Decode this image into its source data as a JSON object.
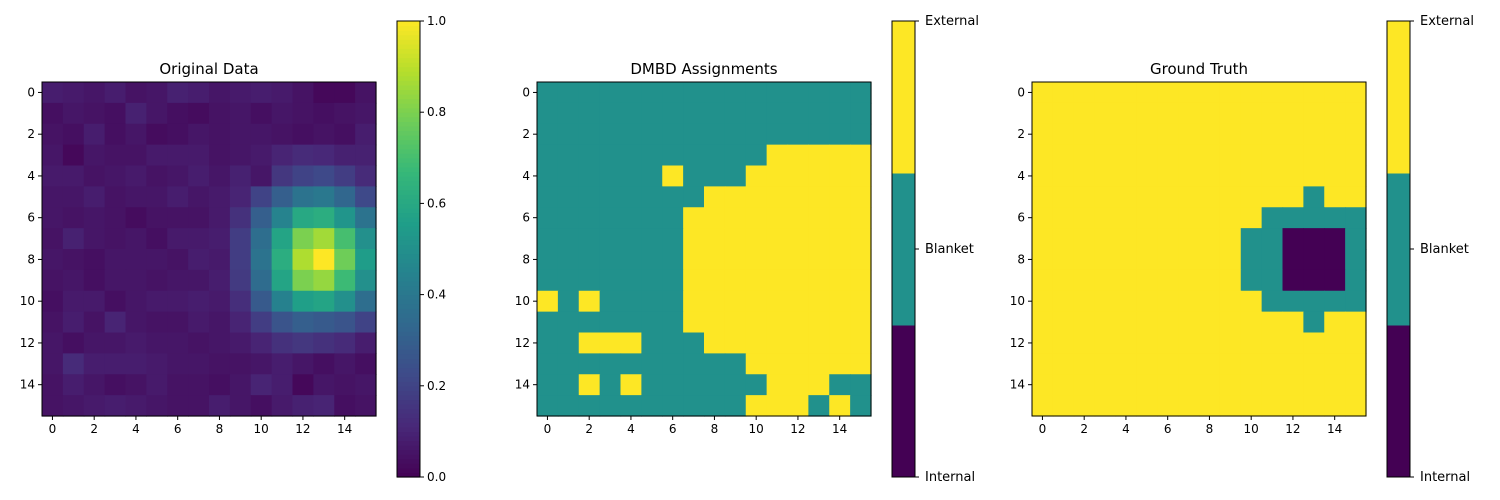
{
  "chart_data": [
    {
      "type": "heatmap",
      "title": "Original Data",
      "x_ticks": [
        0,
        2,
        4,
        6,
        8,
        10,
        12,
        14
      ],
      "y_ticks": [
        0,
        2,
        4,
        6,
        8,
        10,
        12,
        14
      ],
      "colormap": "viridis",
      "colorbar": {
        "ticks": [
          "0.0",
          "0.2",
          "0.4",
          "0.6",
          "0.8",
          "1.0"
        ],
        "range": [
          0,
          1
        ]
      },
      "values": [
        [
          0.08,
          0.07,
          0.06,
          0.08,
          0.05,
          0.06,
          0.09,
          0.08,
          0.06,
          0.07,
          0.08,
          0.07,
          0.05,
          0.02,
          0.02,
          0.05
        ],
        [
          0.04,
          0.06,
          0.05,
          0.04,
          0.09,
          0.06,
          0.04,
          0.03,
          0.05,
          0.06,
          0.04,
          0.06,
          0.05,
          0.04,
          0.05,
          0.06
        ],
        [
          0.05,
          0.04,
          0.08,
          0.04,
          0.06,
          0.03,
          0.04,
          0.06,
          0.05,
          0.06,
          0.06,
          0.05,
          0.04,
          0.05,
          0.04,
          0.08
        ],
        [
          0.06,
          0.02,
          0.06,
          0.05,
          0.05,
          0.07,
          0.07,
          0.07,
          0.05,
          0.06,
          0.07,
          0.1,
          0.12,
          0.11,
          0.09,
          0.09
        ],
        [
          0.07,
          0.07,
          0.05,
          0.06,
          0.07,
          0.05,
          0.06,
          0.08,
          0.06,
          0.09,
          0.06,
          0.16,
          0.2,
          0.22,
          0.18,
          0.12
        ],
        [
          0.06,
          0.06,
          0.08,
          0.05,
          0.06,
          0.06,
          0.08,
          0.06,
          0.07,
          0.1,
          0.2,
          0.3,
          0.38,
          0.4,
          0.33,
          0.22
        ],
        [
          0.06,
          0.05,
          0.06,
          0.05,
          0.03,
          0.05,
          0.05,
          0.05,
          0.07,
          0.14,
          0.3,
          0.45,
          0.6,
          0.62,
          0.52,
          0.38
        ],
        [
          0.05,
          0.09,
          0.06,
          0.05,
          0.06,
          0.04,
          0.07,
          0.07,
          0.08,
          0.18,
          0.36,
          0.58,
          0.8,
          0.86,
          0.7,
          0.5
        ],
        [
          0.06,
          0.05,
          0.04,
          0.06,
          0.06,
          0.06,
          0.05,
          0.08,
          0.07,
          0.18,
          0.38,
          0.62,
          0.88,
          1.0,
          0.78,
          0.55
        ],
        [
          0.05,
          0.06,
          0.04,
          0.06,
          0.06,
          0.05,
          0.06,
          0.06,
          0.08,
          0.17,
          0.35,
          0.58,
          0.8,
          0.84,
          0.68,
          0.5
        ],
        [
          0.04,
          0.07,
          0.07,
          0.04,
          0.06,
          0.07,
          0.07,
          0.08,
          0.07,
          0.13,
          0.28,
          0.44,
          0.56,
          0.58,
          0.5,
          0.36
        ],
        [
          0.05,
          0.08,
          0.05,
          0.1,
          0.06,
          0.05,
          0.05,
          0.07,
          0.06,
          0.1,
          0.18,
          0.26,
          0.3,
          0.28,
          0.26,
          0.2
        ],
        [
          0.06,
          0.04,
          0.06,
          0.06,
          0.07,
          0.06,
          0.06,
          0.05,
          0.06,
          0.07,
          0.1,
          0.14,
          0.16,
          0.14,
          0.12,
          0.08
        ],
        [
          0.06,
          0.12,
          0.08,
          0.08,
          0.08,
          0.07,
          0.06,
          0.06,
          0.05,
          0.05,
          0.06,
          0.08,
          0.06,
          0.04,
          0.06,
          0.04
        ],
        [
          0.05,
          0.08,
          0.06,
          0.04,
          0.05,
          0.07,
          0.05,
          0.05,
          0.04,
          0.06,
          0.1,
          0.08,
          0.02,
          0.06,
          0.05,
          0.06
        ],
        [
          0.05,
          0.06,
          0.07,
          0.08,
          0.07,
          0.06,
          0.05,
          0.05,
          0.08,
          0.06,
          0.04,
          0.07,
          0.09,
          0.1,
          0.04,
          0.05
        ]
      ]
    },
    {
      "type": "heatmap",
      "title": "DMBD Assignments",
      "x_ticks": [
        0,
        2,
        4,
        6,
        8,
        10,
        12,
        14
      ],
      "y_ticks": [
        0,
        2,
        4,
        6,
        8,
        10,
        12,
        14
      ],
      "colormap": "viridis-3",
      "class_colors": [
        "#440154",
        "#21918c",
        "#fde725"
      ],
      "colorbar": {
        "labels": [
          "Internal",
          "Blanket",
          "External"
        ]
      },
      "values": [
        [
          1,
          1,
          1,
          1,
          1,
          1,
          1,
          1,
          1,
          1,
          1,
          1,
          1,
          1,
          1,
          1
        ],
        [
          1,
          1,
          1,
          1,
          1,
          1,
          1,
          1,
          1,
          1,
          1,
          1,
          1,
          1,
          1,
          1
        ],
        [
          1,
          1,
          1,
          1,
          1,
          1,
          1,
          1,
          1,
          1,
          1,
          1,
          1,
          1,
          1,
          1
        ],
        [
          1,
          1,
          1,
          1,
          1,
          1,
          1,
          1,
          1,
          1,
          1,
          2,
          2,
          2,
          2,
          2
        ],
        [
          1,
          1,
          1,
          1,
          1,
          1,
          2,
          1,
          1,
          1,
          2,
          2,
          2,
          2,
          2,
          2
        ],
        [
          1,
          1,
          1,
          1,
          1,
          1,
          1,
          1,
          2,
          2,
          2,
          2,
          2,
          2,
          2,
          2
        ],
        [
          1,
          1,
          1,
          1,
          1,
          1,
          1,
          2,
          2,
          2,
          2,
          2,
          2,
          2,
          2,
          2
        ],
        [
          1,
          1,
          1,
          1,
          1,
          1,
          1,
          2,
          2,
          2,
          2,
          2,
          2,
          2,
          2,
          2
        ],
        [
          1,
          1,
          1,
          1,
          1,
          1,
          1,
          2,
          2,
          2,
          2,
          2,
          2,
          2,
          2,
          2
        ],
        [
          1,
          1,
          1,
          1,
          1,
          1,
          1,
          2,
          2,
          2,
          2,
          2,
          2,
          2,
          2,
          2
        ],
        [
          2,
          1,
          2,
          1,
          1,
          1,
          1,
          2,
          2,
          2,
          2,
          2,
          2,
          2,
          2,
          2
        ],
        [
          1,
          1,
          1,
          1,
          1,
          1,
          1,
          2,
          2,
          2,
          2,
          2,
          2,
          2,
          2,
          2
        ],
        [
          1,
          1,
          2,
          2,
          2,
          1,
          1,
          1,
          2,
          2,
          2,
          2,
          2,
          2,
          2,
          2
        ],
        [
          1,
          1,
          1,
          1,
          1,
          1,
          1,
          1,
          1,
          1,
          2,
          2,
          2,
          2,
          2,
          2
        ],
        [
          1,
          1,
          2,
          1,
          2,
          1,
          1,
          1,
          1,
          1,
          1,
          2,
          2,
          2,
          1,
          1
        ],
        [
          1,
          1,
          1,
          1,
          1,
          1,
          1,
          1,
          1,
          1,
          2,
          2,
          2,
          1,
          2,
          1
        ]
      ]
    },
    {
      "type": "heatmap",
      "title": "Ground Truth",
      "x_ticks": [
        0,
        2,
        4,
        6,
        8,
        10,
        12,
        14
      ],
      "y_ticks": [
        0,
        2,
        4,
        6,
        8,
        10,
        12,
        14
      ],
      "colormap": "viridis-3",
      "class_colors": [
        "#440154",
        "#21918c",
        "#fde725"
      ],
      "colorbar": {
        "labels": [
          "Internal",
          "Blanket",
          "External"
        ]
      },
      "values": [
        [
          2,
          2,
          2,
          2,
          2,
          2,
          2,
          2,
          2,
          2,
          2,
          2,
          2,
          2,
          2,
          2
        ],
        [
          2,
          2,
          2,
          2,
          2,
          2,
          2,
          2,
          2,
          2,
          2,
          2,
          2,
          2,
          2,
          2
        ],
        [
          2,
          2,
          2,
          2,
          2,
          2,
          2,
          2,
          2,
          2,
          2,
          2,
          2,
          2,
          2,
          2
        ],
        [
          2,
          2,
          2,
          2,
          2,
          2,
          2,
          2,
          2,
          2,
          2,
          2,
          2,
          2,
          2,
          2
        ],
        [
          2,
          2,
          2,
          2,
          2,
          2,
          2,
          2,
          2,
          2,
          2,
          2,
          2,
          2,
          2,
          2
        ],
        [
          2,
          2,
          2,
          2,
          2,
          2,
          2,
          2,
          2,
          2,
          2,
          2,
          2,
          1,
          2,
          2
        ],
        [
          2,
          2,
          2,
          2,
          2,
          2,
          2,
          2,
          2,
          2,
          2,
          1,
          1,
          1,
          1,
          1
        ],
        [
          2,
          2,
          2,
          2,
          2,
          2,
          2,
          2,
          2,
          2,
          1,
          1,
          0,
          0,
          0,
          1
        ],
        [
          2,
          2,
          2,
          2,
          2,
          2,
          2,
          2,
          2,
          2,
          1,
          1,
          0,
          0,
          0,
          1
        ],
        [
          2,
          2,
          2,
          2,
          2,
          2,
          2,
          2,
          2,
          2,
          1,
          1,
          0,
          0,
          0,
          1
        ],
        [
          2,
          2,
          2,
          2,
          2,
          2,
          2,
          2,
          2,
          2,
          2,
          1,
          1,
          1,
          1,
          1
        ],
        [
          2,
          2,
          2,
          2,
          2,
          2,
          2,
          2,
          2,
          2,
          2,
          2,
          2,
          1,
          2,
          2
        ],
        [
          2,
          2,
          2,
          2,
          2,
          2,
          2,
          2,
          2,
          2,
          2,
          2,
          2,
          2,
          2,
          2
        ],
        [
          2,
          2,
          2,
          2,
          2,
          2,
          2,
          2,
          2,
          2,
          2,
          2,
          2,
          2,
          2,
          2
        ],
        [
          2,
          2,
          2,
          2,
          2,
          2,
          2,
          2,
          2,
          2,
          2,
          2,
          2,
          2,
          2,
          2
        ],
        [
          2,
          2,
          2,
          2,
          2,
          2,
          2,
          2,
          2,
          2,
          2,
          2,
          2,
          2,
          2,
          2
        ]
      ]
    }
  ]
}
